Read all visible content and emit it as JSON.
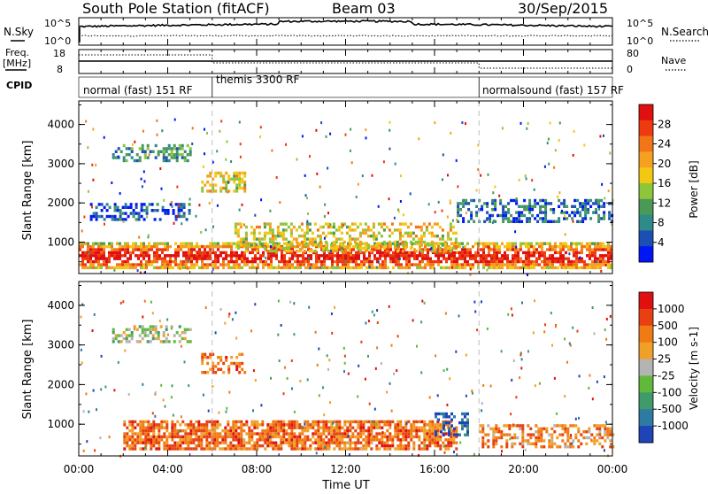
{
  "header": {
    "station": "South Pole Station (fitACF)",
    "beam": "Beam 03",
    "date": "30/Sep/2015"
  },
  "summary": {
    "nsky_label": "N.Sky",
    "nsky_ticks": [
      "10^5",
      "10^0"
    ],
    "nsearch_label": "N.Search",
    "nsearch_ticks": [
      "10^5",
      "10^0"
    ],
    "freq_label_1": "Freq.",
    "freq_label_2": "[MHz]",
    "freq_ticks": [
      "18",
      "8"
    ],
    "nave_label": "Nave",
    "nave_ticks": [
      "80",
      "0"
    ],
    "cpid_label": "CPID",
    "cpid_segments": [
      {
        "label": "normal (fast) 151 RF",
        "start_hour": 0,
        "end_hour": 6
      },
      {
        "label": "themis 3300 RF",
        "start_hour": 6,
        "end_hour": 18
      },
      {
        "label": "normalsound (fast) 157 RF",
        "start_hour": 18,
        "end_hour": 24
      }
    ]
  },
  "chart_data": [
    {
      "type": "heatmap",
      "name": "power",
      "ylabel": "Slant Range [km]",
      "xlabel": "",
      "xlim": [
        0,
        24
      ],
      "ylim": [
        200,
        4600
      ],
      "yticks": [
        "4000",
        "3000",
        "2000",
        "1000"
      ],
      "colorbar_label": "Power [dB]",
      "colorbar_ticks": [
        "28",
        "24",
        "20",
        "16",
        "12",
        "8",
        "4"
      ],
      "colorbar_colors": [
        "#0016f5",
        "#1c4fb3",
        "#2f8a8a",
        "#4a9a55",
        "#8dc63a",
        "#f2c813",
        "#f5a020",
        "#f27618",
        "#ee3a0e",
        "#e01010"
      ],
      "regions": [
        {
          "x": [
            0,
            24
          ],
          "y": [
            350,
            1000
          ],
          "level": 0.85
        },
        {
          "x": [
            1.5,
            5
          ],
          "y": [
            3100,
            3500
          ],
          "level": 0.3
        },
        {
          "x": [
            0.5,
            5
          ],
          "y": [
            1600,
            2000
          ],
          "level": 0.15
        },
        {
          "x": [
            17,
            24
          ],
          "y": [
            1500,
            2100
          ],
          "level": 0.2
        },
        {
          "x": [
            5.5,
            7.5
          ],
          "y": [
            2300,
            2800
          ],
          "level": 0.55
        },
        {
          "x": [
            7,
            17
          ],
          "y": [
            800,
            1500
          ],
          "level": 0.55
        }
      ]
    },
    {
      "type": "heatmap",
      "name": "velocity",
      "ylabel": "Slant Range [km]",
      "xlabel": "Time UT",
      "xlim": [
        0,
        24
      ],
      "ylim": [
        200,
        4600
      ],
      "xticks": [
        "00:00",
        "04:00",
        "08:00",
        "12:00",
        "16:00",
        "20:00",
        "00:00"
      ],
      "yticks": [
        "4000",
        "3000",
        "2000",
        "1000"
      ],
      "colorbar_label": "Velocity [m s-1]",
      "colorbar_ticks": [
        "1000",
        "500",
        "100",
        "25",
        "-25",
        "-100",
        "-500",
        "-1000"
      ],
      "colorbar_colors": [
        "#1f44b8",
        "#2d7aa3",
        "#3f9b6a",
        "#62b83a",
        "#b4b4b4",
        "#f0a028",
        "#f07a14",
        "#e84010",
        "#e01010"
      ],
      "regions": [
        {
          "x": [
            2,
            17
          ],
          "y": [
            400,
            1100
          ],
          "level": 0.75
        },
        {
          "x": [
            18,
            24
          ],
          "y": [
            400,
            1000
          ],
          "level": 0.7
        },
        {
          "x": [
            1.5,
            5
          ],
          "y": [
            3100,
            3500
          ],
          "level": 0.45
        },
        {
          "x": [
            5.5,
            7.5
          ],
          "y": [
            2300,
            2800
          ],
          "level": 0.75
        },
        {
          "x": [
            16,
            17.5
          ],
          "y": [
            700,
            1300
          ],
          "level": 0.1
        }
      ]
    }
  ]
}
